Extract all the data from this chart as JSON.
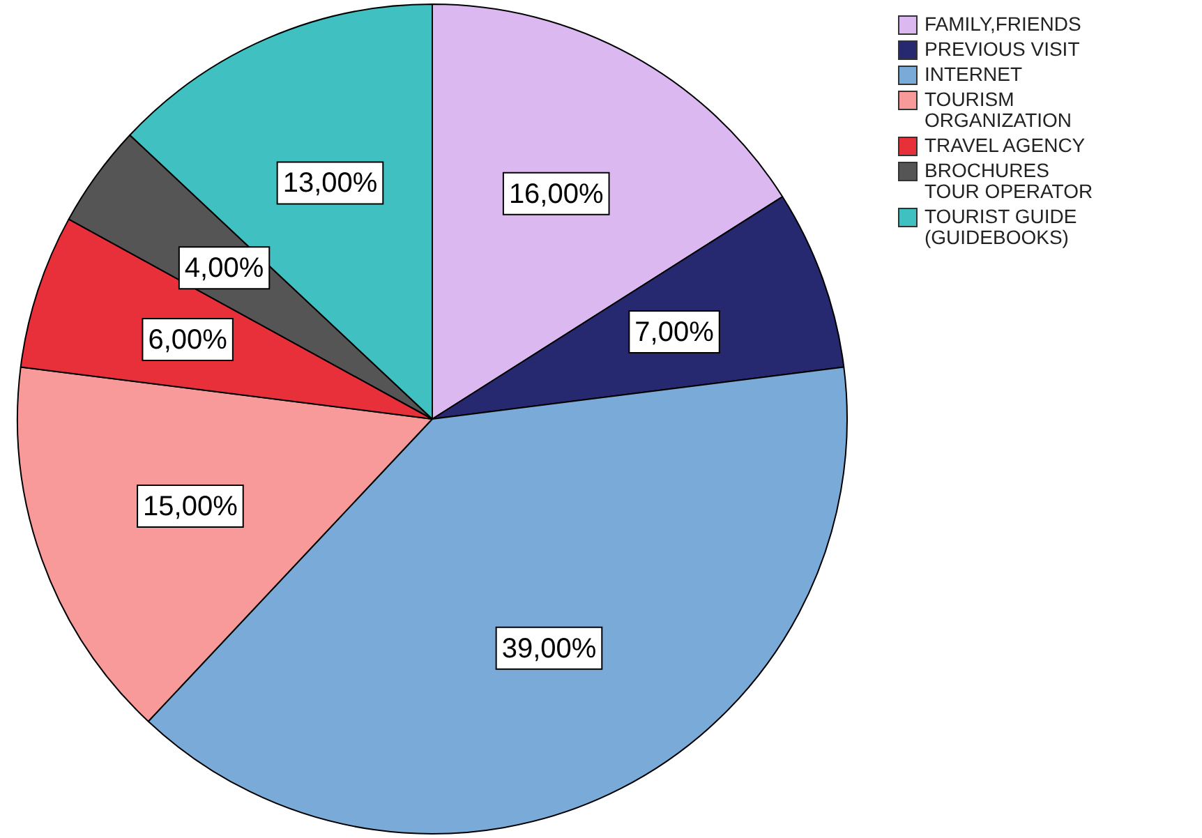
{
  "chart_data": {
    "type": "pie",
    "categories": [
      "FAMILY,FRIENDS",
      "PREVIOUS VISIT",
      "INTERNET",
      "TOURISM ORGANIZATION",
      "TRAVEL AGENCY",
      "BROCHURES TOUR OPERATOR",
      "TOURIST GUIDE (GUIDEBOOKS)"
    ],
    "values": [
      16,
      7,
      39,
      15,
      6,
      4,
      13
    ],
    "value_labels": [
      "16,00%",
      "7,00%",
      "39,00%",
      "15,00%",
      "6,00%",
      "4,00%",
      "13,00%"
    ],
    "colors": [
      "#dcb8f0",
      "#262870",
      "#7aaad8",
      "#f99a9a",
      "#e8303a",
      "#555555",
      "#40c0c0"
    ],
    "legend": "top right"
  }
}
